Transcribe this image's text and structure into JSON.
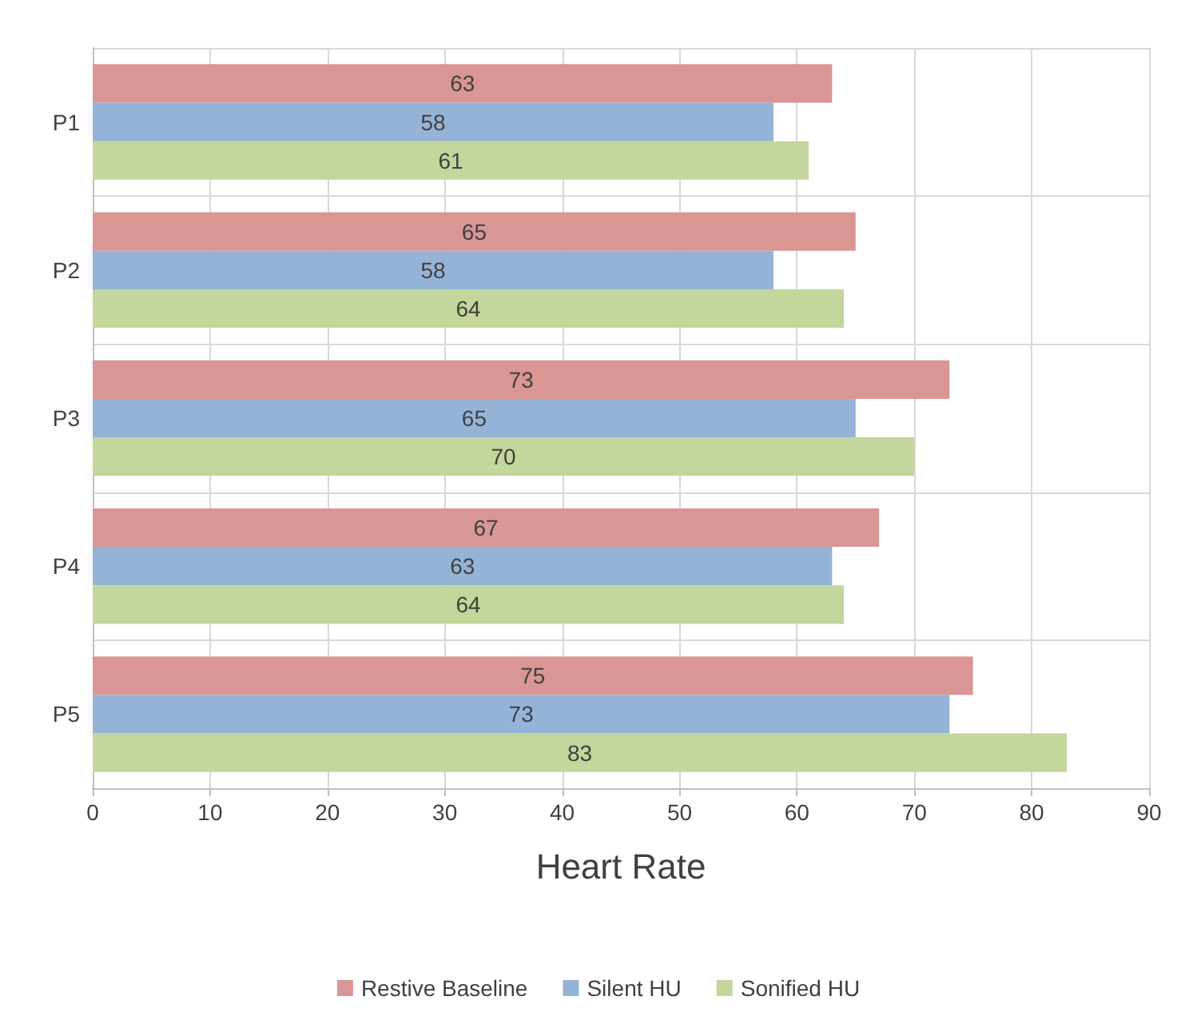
{
  "chart_data": {
    "type": "bar",
    "orientation": "horizontal",
    "xlabel": "Heart Rate",
    "categories": [
      "P1",
      "P2",
      "P3",
      "P4",
      "P5"
    ],
    "series": [
      {
        "name": "Restive Baseline",
        "color": "#d99694",
        "values": [
          63,
          65,
          73,
          67,
          75
        ]
      },
      {
        "name": "Silent HU",
        "color": "#95b3d7",
        "values": [
          58,
          58,
          65,
          63,
          73
        ]
      },
      {
        "name": "Sonified HU",
        "color": "#c3d69b",
        "values": [
          61,
          64,
          70,
          64,
          83
        ]
      }
    ],
    "xlim": [
      0,
      90
    ],
    "xticks": [
      0,
      10,
      20,
      30,
      40,
      50,
      60,
      70,
      80,
      90
    ],
    "grid": true,
    "legend": "bottom",
    "data_labels": true
  }
}
